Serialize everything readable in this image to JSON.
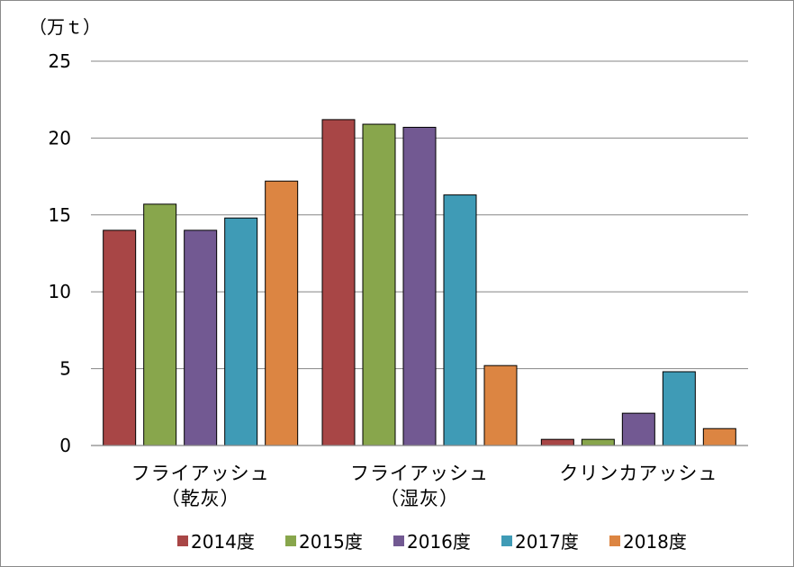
{
  "chart_data": {
    "type": "bar",
    "title": "",
    "unit_label": "（万ｔ）",
    "ylim": [
      0,
      25
    ],
    "yticks": [
      0,
      5,
      10,
      15,
      20,
      25
    ],
    "grid": true,
    "legend_position": "bottom",
    "categories": [
      [
        "フライアッシュ",
        "（乾灰）"
      ],
      [
        "フライアッシュ",
        "（湿灰）"
      ],
      [
        "クリンカアッシュ"
      ]
    ],
    "series": [
      {
        "name": "2014度",
        "color": "#a84646",
        "values": [
          14.0,
          21.2,
          0.4
        ]
      },
      {
        "name": "2015度",
        "color": "#88a64c",
        "values": [
          15.7,
          20.9,
          0.4
        ]
      },
      {
        "name": "2016度",
        "color": "#725992",
        "values": [
          14.0,
          20.7,
          2.1
        ]
      },
      {
        "name": "2017度",
        "color": "#3f9bb6",
        "values": [
          14.8,
          16.3,
          4.8
        ]
      },
      {
        "name": "2018度",
        "color": "#dc8542",
        "values": [
          17.2,
          5.2,
          1.1
        ]
      }
    ]
  }
}
